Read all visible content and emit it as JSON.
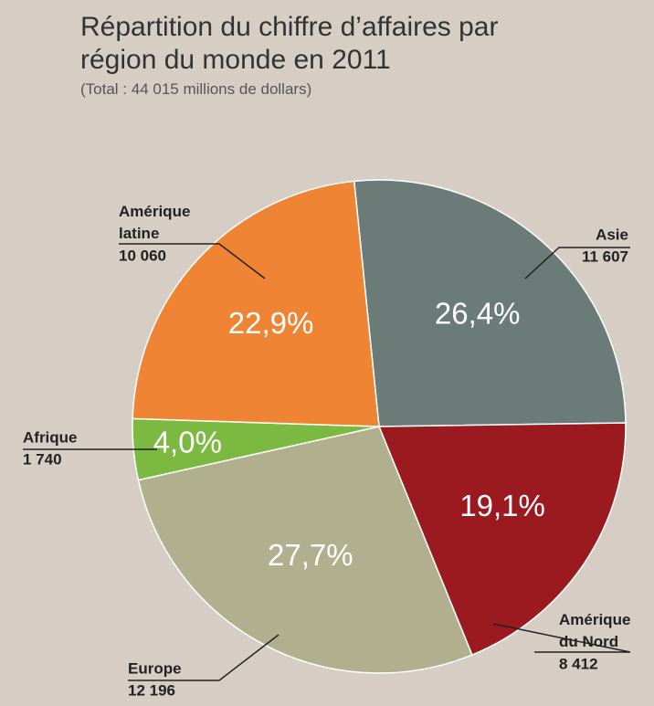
{
  "chart_data": {
    "type": "pie",
    "title": "Répartition du chiffre d’affaires par région du monde en 2011",
    "subtitle": "(Total : 44 015 millions de dollars)",
    "categories": [
      "Asie",
      "Amérique du Nord",
      "Europe",
      "Afrique",
      "Amérique latine"
    ],
    "values": [
      26.4,
      19.1,
      27.7,
      4.0,
      22.9
    ],
    "value_labels": [
      "26,4%",
      "19,1%",
      "27,7%",
      "4,0%",
      "22,9%"
    ],
    "amounts": [
      11607,
      8412,
      12196,
      1740,
      10060
    ],
    "amount_labels": [
      "11 607",
      "8 412",
      "12 196",
      "1 740",
      "10 060"
    ],
    "colors": [
      "#6b7b77",
      "#9a1a1f",
      "#b0b08f",
      "#7cb940",
      "#ee8434"
    ]
  }
}
